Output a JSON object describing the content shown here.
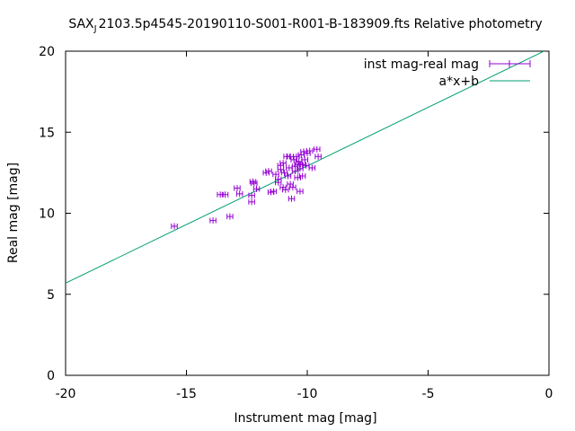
{
  "chart_data": {
    "type": "scatter",
    "title": "SAX",
    "title_subscript": "J",
    "title_rest": "2103.5p4545-20190110-S001-R001-B-183909.fts Relative photometry",
    "xlabel": "Instrument mag [mag]",
    "ylabel": "Real mag [mag]",
    "xlim": [
      -20,
      0
    ],
    "ylim": [
      0,
      20
    ],
    "xticks": [
      -20,
      -15,
      -10,
      -5,
      0
    ],
    "yticks": [
      0,
      5,
      10,
      15,
      20
    ],
    "xtick_labels": [
      "-20",
      "-15",
      "-10",
      "-5",
      "0"
    ],
    "ytick_labels": [
      "0",
      "5",
      "10",
      "15",
      "20"
    ],
    "grid": false,
    "legend_position": "top-right",
    "series": [
      {
        "name": "inst mag-real mag",
        "kind": "points-errorbars",
        "color": "#9400d3",
        "x_error": 0.12,
        "points": [
          [
            -15.5,
            9.2
          ],
          [
            -13.9,
            9.55
          ],
          [
            -13.6,
            11.15
          ],
          [
            -13.4,
            11.15
          ],
          [
            -13.2,
            9.8
          ],
          [
            -12.9,
            11.55
          ],
          [
            -12.8,
            11.2
          ],
          [
            -12.3,
            10.7
          ],
          [
            -12.3,
            11.1
          ],
          [
            -12.25,
            11.95
          ],
          [
            -12.2,
            11.85
          ],
          [
            -12.1,
            11.5
          ],
          [
            -11.7,
            12.5
          ],
          [
            -11.6,
            12.6
          ],
          [
            -11.5,
            11.3
          ],
          [
            -11.4,
            11.35
          ],
          [
            -11.3,
            12.4
          ],
          [
            -11.2,
            12.1
          ],
          [
            -11.2,
            11.9
          ],
          [
            -11.1,
            12.7
          ],
          [
            -11.1,
            12.95
          ],
          [
            -11.0,
            13.1
          ],
          [
            -11.0,
            11.6
          ],
          [
            -10.95,
            12.5
          ],
          [
            -10.9,
            11.45
          ],
          [
            -10.85,
            13.5
          ],
          [
            -10.8,
            12.3
          ],
          [
            -10.75,
            12.8
          ],
          [
            -10.7,
            13.5
          ],
          [
            -10.7,
            11.8
          ],
          [
            -10.65,
            10.9
          ],
          [
            -10.6,
            11.6
          ],
          [
            -10.55,
            13.3
          ],
          [
            -10.5,
            12.9
          ],
          [
            -10.5,
            12.6
          ],
          [
            -10.45,
            13.5
          ],
          [
            -10.4,
            13.0
          ],
          [
            -10.4,
            12.2
          ],
          [
            -10.35,
            13.2
          ],
          [
            -10.3,
            12.75
          ],
          [
            -10.3,
            11.35
          ],
          [
            -10.25,
            13.6
          ],
          [
            -10.2,
            12.3
          ],
          [
            -10.2,
            13.0
          ],
          [
            -10.15,
            13.8
          ],
          [
            -10.1,
            13.3
          ],
          [
            -10.05,
            12.95
          ],
          [
            -10.0,
            13.7
          ],
          [
            -9.9,
            13.85
          ],
          [
            -9.8,
            12.8
          ],
          [
            -9.6,
            13.95
          ],
          [
            -9.55,
            13.5
          ]
        ]
      },
      {
        "name": "a*x+b",
        "kind": "line",
        "color": "#009e73",
        "slope": 0.7231,
        "intercept": 20.15
      }
    ]
  }
}
